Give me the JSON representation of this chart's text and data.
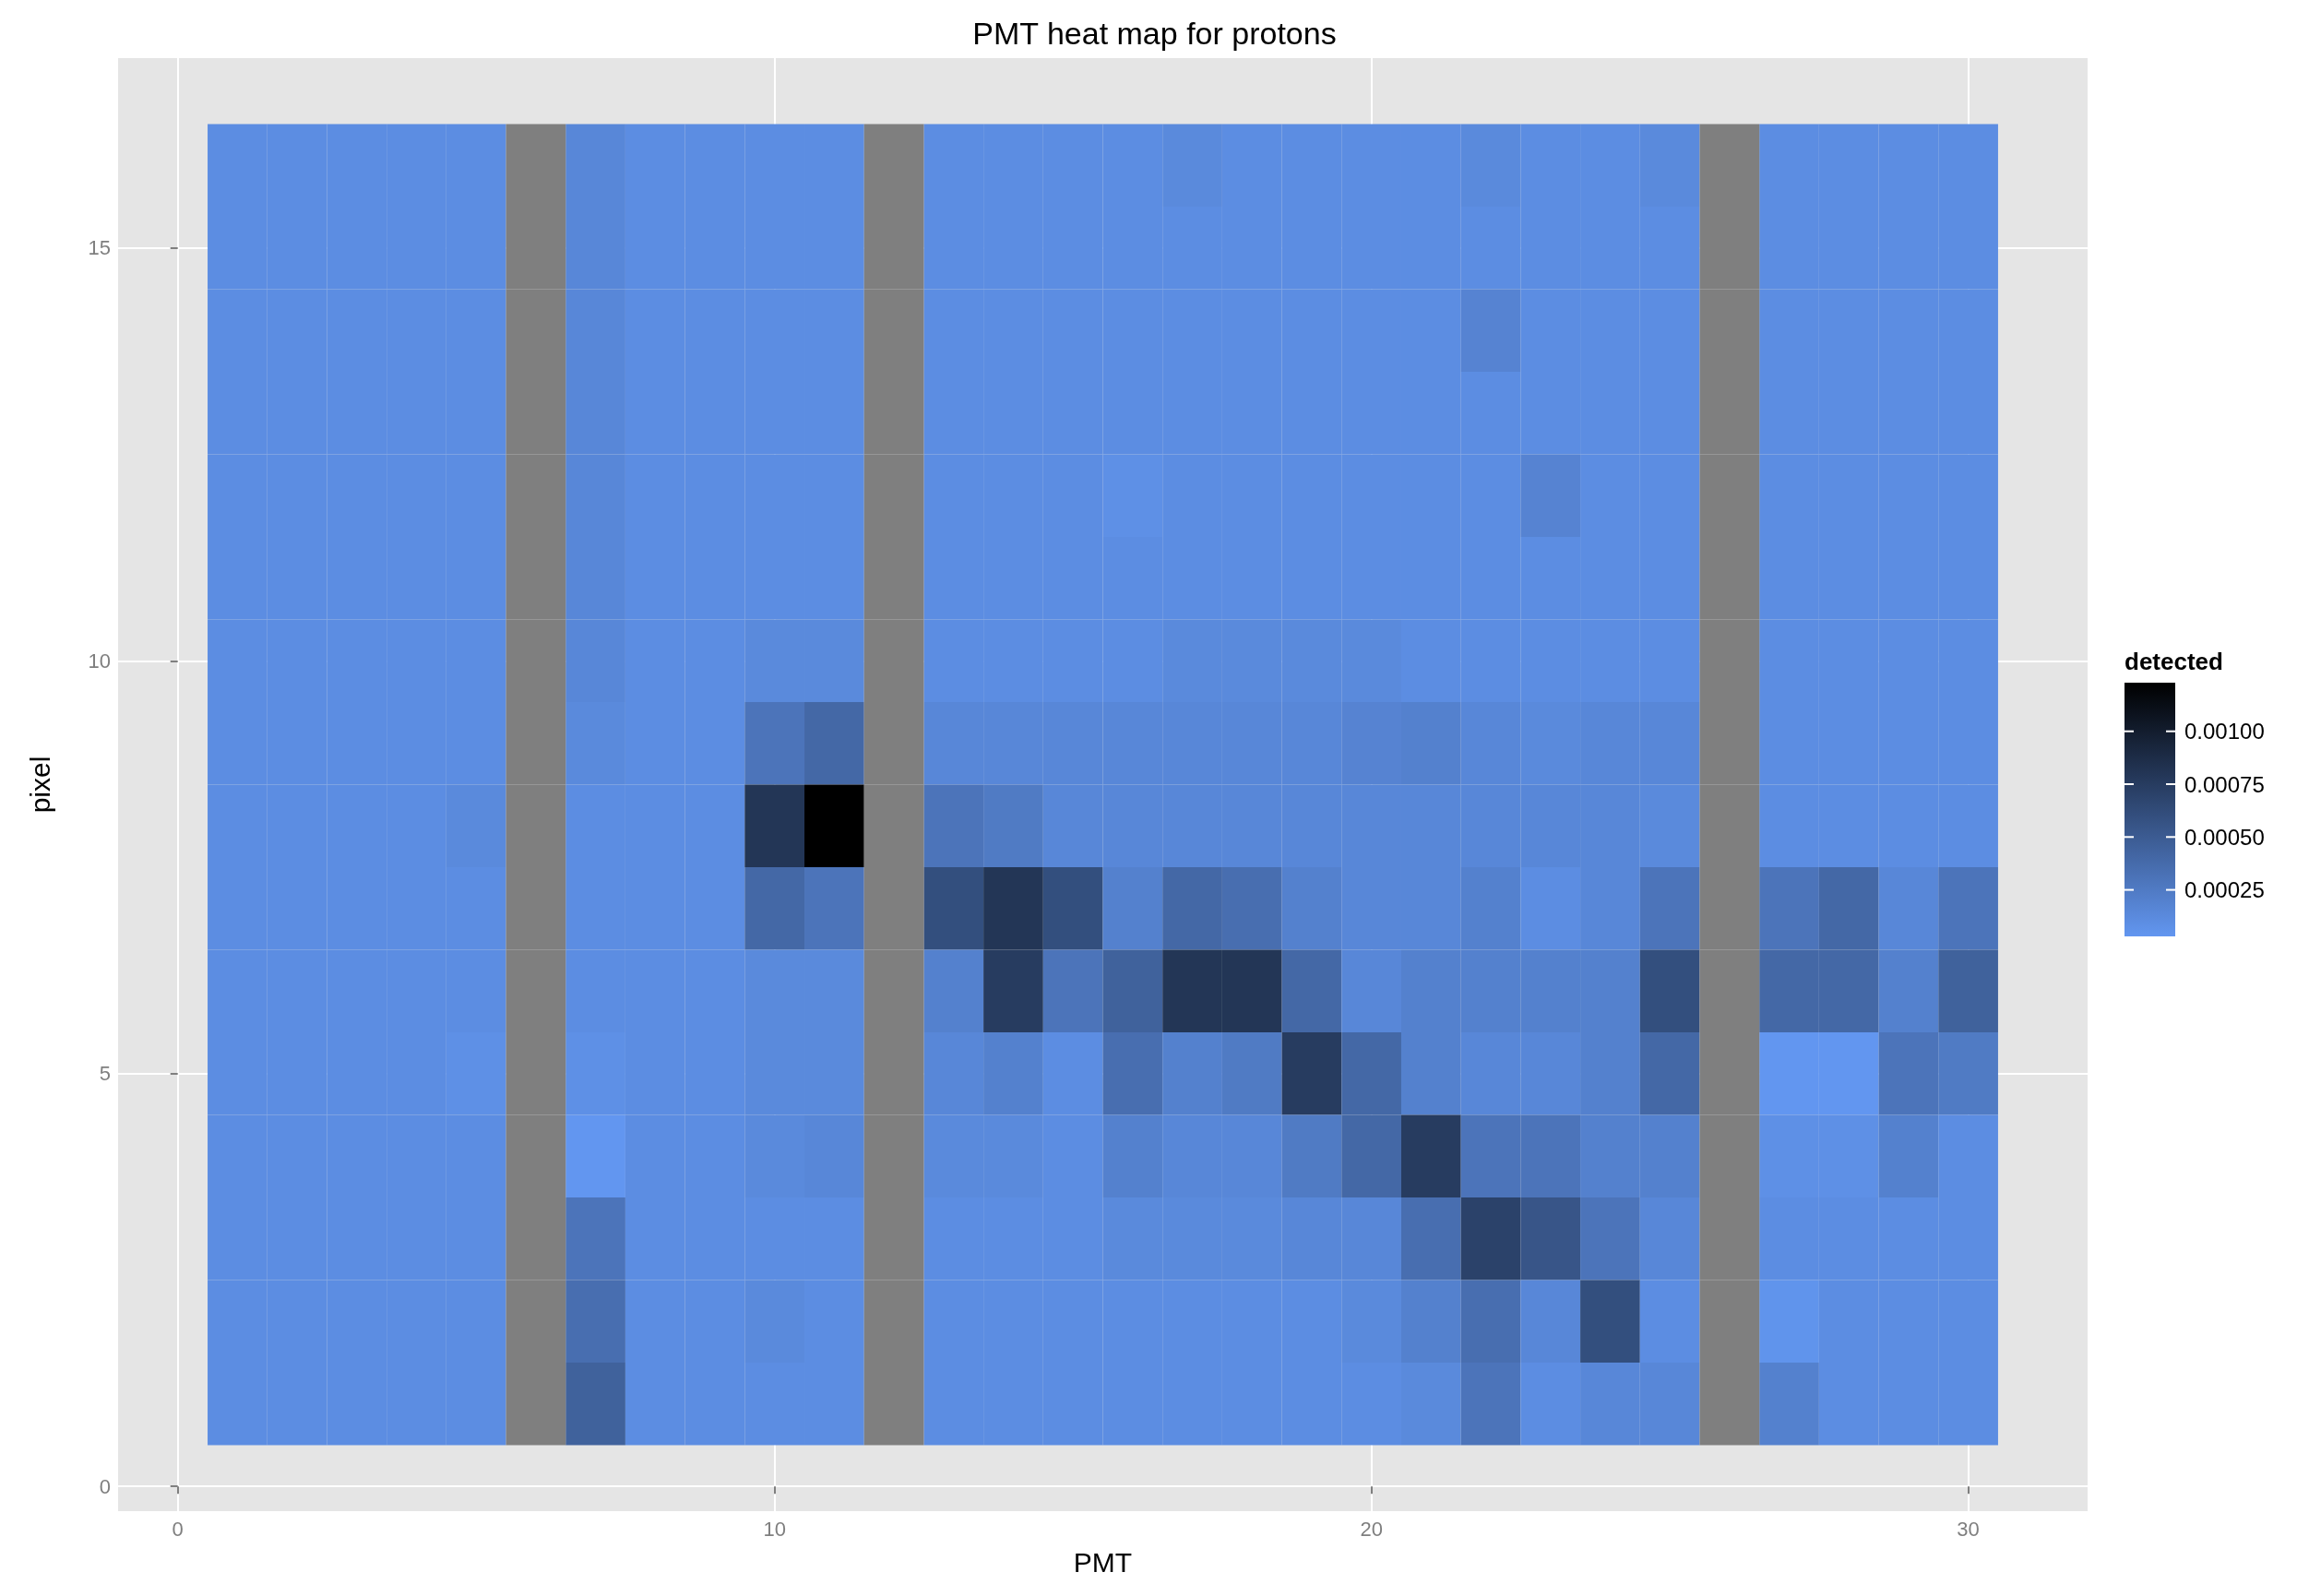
{
  "chart_data": {
    "type": "heatmap",
    "title": "PMT heat map for protons",
    "xlabel": "PMT",
    "ylabel": "pixel",
    "clabel": "detected",
    "x": [
      1,
      2,
      3,
      4,
      5,
      6,
      7,
      8,
      9,
      10,
      11,
      12,
      13,
      14,
      15,
      16,
      17,
      18,
      19,
      20,
      21,
      22,
      23,
      24,
      25,
      26,
      27,
      28,
      29,
      30
    ],
    "y": [
      16,
      15,
      14,
      13,
      12,
      11,
      10,
      9,
      8,
      7,
      6,
      5,
      4,
      3,
      2,
      1
    ],
    "xlim": [
      -1,
      32
    ],
    "xticks": [
      0,
      10,
      20,
      30
    ],
    "ylim": [
      -0.3,
      17.3
    ],
    "yticks": [
      0,
      5,
      10,
      15
    ],
    "clim": [
      3e-05,
      0.00123
    ],
    "cticks": [
      {
        "value": 0.00025,
        "label": "0.00025"
      },
      {
        "value": 0.0005,
        "label": "0.00050"
      },
      {
        "value": 0.00075,
        "label": "0.00075"
      },
      {
        "value": 0.001,
        "label": "0.00100"
      }
    ],
    "grid": true,
    "cells": [
      [
        0.0001,
        0.0001,
        0.0001,
        0.0001,
        0.0001,
        null,
        0.00015,
        0.0001,
        0.0001,
        0.0001,
        0.0001,
        null,
        0.0001,
        0.0001,
        0.0001,
        0.0001,
        0.00013,
        0.0001,
        0.0001,
        0.0001,
        0.0001,
        0.00013,
        0.0001,
        0.0001,
        0.00013,
        null,
        0.0001,
        0.0001,
        0.0001,
        0.0001
      ],
      [
        0.0001,
        0.0001,
        0.0001,
        0.0001,
        0.0001,
        null,
        0.00015,
        0.0001,
        0.0001,
        0.0001,
        0.0001,
        null,
        0.0001,
        0.0001,
        0.0001,
        0.0001,
        0.0001,
        0.0001,
        0.0001,
        0.0001,
        0.0001,
        0.0001,
        0.0001,
        0.0001,
        0.0001,
        null,
        0.0001,
        0.0001,
        0.0001,
        0.0001
      ],
      [
        0.0001,
        0.0001,
        0.0001,
        0.0001,
        0.0001,
        null,
        0.00015,
        0.0001,
        0.0001,
        0.0001,
        0.0001,
        null,
        0.0001,
        0.0001,
        0.0001,
        0.0001,
        0.0001,
        0.0001,
        0.0001,
        0.0001,
        0.0001,
        0.00018,
        0.0001,
        0.0001,
        0.0001,
        null,
        0.0001,
        0.0001,
        0.0001,
        0.0001
      ],
      [
        0.0001,
        0.0001,
        0.0001,
        0.0001,
        0.0001,
        null,
        0.00015,
        0.0001,
        0.0001,
        0.0001,
        0.0001,
        null,
        0.0001,
        0.0001,
        0.0001,
        0.0001,
        0.0001,
        0.0001,
        0.0001,
        0.0001,
        0.0001,
        0.0001,
        0.0001,
        0.0001,
        0.0001,
        null,
        0.0001,
        0.0001,
        0.0001,
        0.0001
      ],
      [
        0.0001,
        0.0001,
        0.0001,
        0.0001,
        0.0001,
        null,
        0.00015,
        0.0001,
        0.0001,
        0.0001,
        0.0001,
        null,
        0.0001,
        0.0001,
        0.0001,
        8e-05,
        0.0001,
        0.0001,
        0.0001,
        0.0001,
        0.0001,
        0.0001,
        0.00018,
        0.0001,
        0.0001,
        null,
        0.0001,
        0.0001,
        0.0001,
        0.0001
      ],
      [
        0.0001,
        0.0001,
        0.0001,
        0.0001,
        0.0001,
        null,
        0.00015,
        0.0001,
        0.0001,
        0.0001,
        0.0001,
        null,
        0.0001,
        0.0001,
        0.0001,
        0.0001,
        0.0001,
        0.0001,
        0.0001,
        0.0001,
        0.0001,
        0.0001,
        0.0001,
        0.0001,
        0.0001,
        null,
        0.0001,
        0.0001,
        0.0001,
        0.0001
      ],
      [
        0.0001,
        0.0001,
        0.0001,
        0.0001,
        0.0001,
        null,
        0.00015,
        0.0001,
        0.0001,
        0.00013,
        0.00013,
        null,
        0.0001,
        0.0001,
        0.0001,
        0.0001,
        0.00013,
        0.00013,
        0.00013,
        0.00013,
        0.0001,
        0.0001,
        0.0001,
        0.0001,
        0.0001,
        null,
        0.0001,
        0.0001,
        0.0001,
        0.0001
      ],
      [
        0.0001,
        0.0001,
        0.0001,
        0.0001,
        0.0001,
        null,
        0.00013,
        0.0001,
        0.0001,
        0.0003,
        0.0004,
        null,
        0.00015,
        0.00015,
        0.00015,
        0.00015,
        0.00015,
        0.00015,
        0.00015,
        0.00018,
        0.0002,
        0.00015,
        0.00013,
        0.00015,
        0.00015,
        null,
        0.0001,
        0.0001,
        0.0001,
        0.0001
      ],
      [
        0.0001,
        0.0001,
        0.0001,
        0.0001,
        0.00013,
        null,
        0.0001,
        0.0001,
        0.0001,
        0.0008,
        0.00123,
        null,
        0.0003,
        0.00025,
        0.00015,
        0.00015,
        0.00015,
        0.00015,
        0.00015,
        0.00015,
        0.00015,
        0.00015,
        0.00015,
        0.00015,
        0.00013,
        null,
        0.0001,
        0.0001,
        0.0001,
        0.0001
      ],
      [
        0.0001,
        0.0001,
        0.0001,
        0.0001,
        0.0001,
        null,
        0.0001,
        0.0001,
        0.0001,
        0.0004,
        0.0003,
        null,
        0.0006,
        0.0008,
        0.0006,
        0.0002,
        0.0004,
        0.00035,
        0.0002,
        0.00015,
        0.00015,
        0.0002,
        0.0001,
        0.00015,
        0.0003,
        null,
        0.0003,
        0.0004,
        0.00015,
        0.0003
      ],
      [
        0.0001,
        0.0001,
        0.0001,
        0.0001,
        0.0001,
        null,
        0.0001,
        0.0001,
        0.0001,
        0.00013,
        0.00013,
        null,
        0.0002,
        0.00075,
        0.0003,
        0.00045,
        0.0008,
        0.0008,
        0.0004,
        0.00015,
        0.0002,
        0.0002,
        0.0002,
        0.0002,
        0.0006,
        null,
        0.0004,
        0.0004,
        0.0002,
        0.00045
      ],
      [
        0.0001,
        0.0001,
        0.0001,
        0.0001,
        8e-05,
        null,
        8e-05,
        0.0001,
        0.0001,
        0.00013,
        0.00013,
        null,
        0.00015,
        0.0002,
        0.0001,
        0.00035,
        0.0002,
        0.00025,
        0.00075,
        0.0004,
        0.0002,
        0.00015,
        0.00015,
        0.0002,
        0.0004,
        null,
        3e-05,
        3e-05,
        0.0003,
        0.00025
      ],
      [
        0.0001,
        0.0001,
        0.0001,
        0.0001,
        0.0001,
        null,
        3e-05,
        0.0001,
        0.0001,
        0.00013,
        0.00015,
        null,
        0.00013,
        0.00013,
        0.0001,
        0.0002,
        0.00015,
        0.00015,
        0.00025,
        0.0004,
        0.00075,
        0.0003,
        0.0003,
        0.0002,
        0.0002,
        null,
        8e-05,
        8e-05,
        0.0002,
        0.0001
      ],
      [
        0.0001,
        0.0001,
        0.0001,
        0.0001,
        0.0001,
        null,
        0.0003,
        0.0001,
        0.0001,
        0.0001,
        0.0001,
        null,
        0.0001,
        0.0001,
        0.0001,
        0.00013,
        0.00013,
        0.00013,
        0.00015,
        0.00015,
        0.00035,
        0.0007,
        0.00055,
        0.0003,
        0.00015,
        null,
        0.0001,
        0.0001,
        0.0001,
        0.0001
      ],
      [
        0.0001,
        0.0001,
        0.0001,
        0.0001,
        0.0001,
        null,
        0.00035,
        0.0001,
        0.0001,
        0.00013,
        0.0001,
        null,
        0.0001,
        0.0001,
        0.0001,
        0.0001,
        0.0001,
        0.0001,
        0.0001,
        0.00013,
        0.0002,
        0.00035,
        0.00015,
        0.0006,
        0.0001,
        null,
        5e-05,
        0.0001,
        0.0001,
        0.0001
      ],
      [
        0.0001,
        0.0001,
        0.0001,
        0.0001,
        0.0001,
        null,
        0.00045,
        0.0001,
        0.0001,
        0.0001,
        0.0001,
        null,
        0.0001,
        0.0001,
        0.0001,
        0.0001,
        0.0001,
        0.0001,
        0.0001,
        0.0001,
        0.00013,
        0.0003,
        0.0001,
        0.00015,
        0.00015,
        null,
        0.0002,
        0.0001,
        0.0001,
        0.0001
      ]
    ]
  }
}
